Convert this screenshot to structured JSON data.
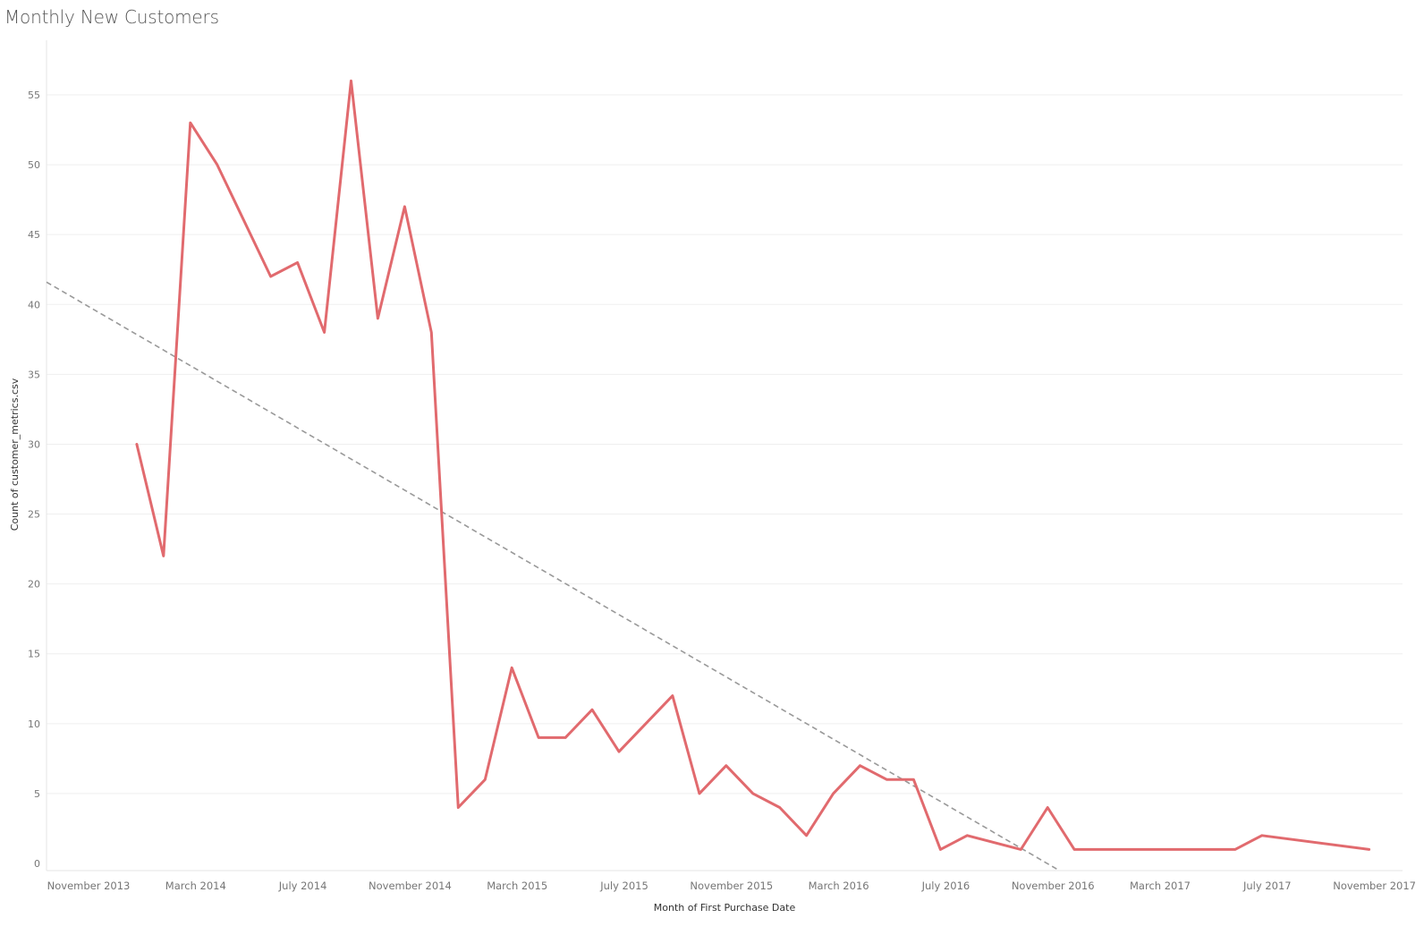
{
  "title": "Monthly New Customers",
  "chart_data": {
    "type": "line",
    "title": "Monthly New Customers",
    "xlabel": "Month of First Purchase Date",
    "ylabel": "Count of customer_metrics.csv",
    "ylim": [
      0,
      58
    ],
    "yticks": [
      0,
      5,
      10,
      15,
      20,
      25,
      30,
      35,
      40,
      45,
      50,
      55
    ],
    "xticks": [
      "November 2013",
      "March 2014",
      "July 2014",
      "November 2014",
      "March 2015",
      "July 2015",
      "November 2015",
      "March 2016",
      "July 2016",
      "November 2016",
      "March 2017",
      "July 2017",
      "November 2017"
    ],
    "grid": true,
    "series": [
      {
        "color": "#e16a6e",
        "points": [
          {
            "x": "2014-01",
            "y": 30
          },
          {
            "x": "2014-02",
            "y": 22
          },
          {
            "x": "2014-03",
            "y": 53
          },
          {
            "x": "2014-04",
            "y": 50
          },
          {
            "x": "2014-06",
            "y": 42
          },
          {
            "x": "2014-07",
            "y": 43
          },
          {
            "x": "2014-08",
            "y": 38
          },
          {
            "x": "2014-09",
            "y": 56
          },
          {
            "x": "2014-10",
            "y": 39
          },
          {
            "x": "2014-11",
            "y": 47
          },
          {
            "x": "2014-12",
            "y": 38
          },
          {
            "x": "2015-01",
            "y": 4
          },
          {
            "x": "2015-02",
            "y": 6
          },
          {
            "x": "2015-03",
            "y": 14
          },
          {
            "x": "2015-04",
            "y": 9
          },
          {
            "x": "2015-05",
            "y": 9
          },
          {
            "x": "2015-06",
            "y": 11
          },
          {
            "x": "2015-07",
            "y": 8
          },
          {
            "x": "2015-09",
            "y": 12
          },
          {
            "x": "2015-10",
            "y": 5
          },
          {
            "x": "2015-11",
            "y": 7
          },
          {
            "x": "2015-12",
            "y": 5
          },
          {
            "x": "2016-01",
            "y": 4
          },
          {
            "x": "2016-02",
            "y": 2
          },
          {
            "x": "2016-03",
            "y": 5
          },
          {
            "x": "2016-04",
            "y": 7
          },
          {
            "x": "2016-05",
            "y": 6
          },
          {
            "x": "2016-06",
            "y": 6
          },
          {
            "x": "2016-07",
            "y": 1
          },
          {
            "x": "2016-08",
            "y": 2
          },
          {
            "x": "2016-10",
            "y": 1
          },
          {
            "x": "2016-11",
            "y": 4
          },
          {
            "x": "2016-12",
            "y": 1
          },
          {
            "x": "2017-06",
            "y": 1
          },
          {
            "x": "2017-07",
            "y": 2
          },
          {
            "x": "2017-11",
            "y": 1
          }
        ]
      }
    ],
    "trend_line": {
      "style": "dashed",
      "color": "#999999",
      "start": {
        "x": "2013-10",
        "y": 41.6
      },
      "end": {
        "x": "2016-12",
        "y": -0.5
      }
    }
  }
}
